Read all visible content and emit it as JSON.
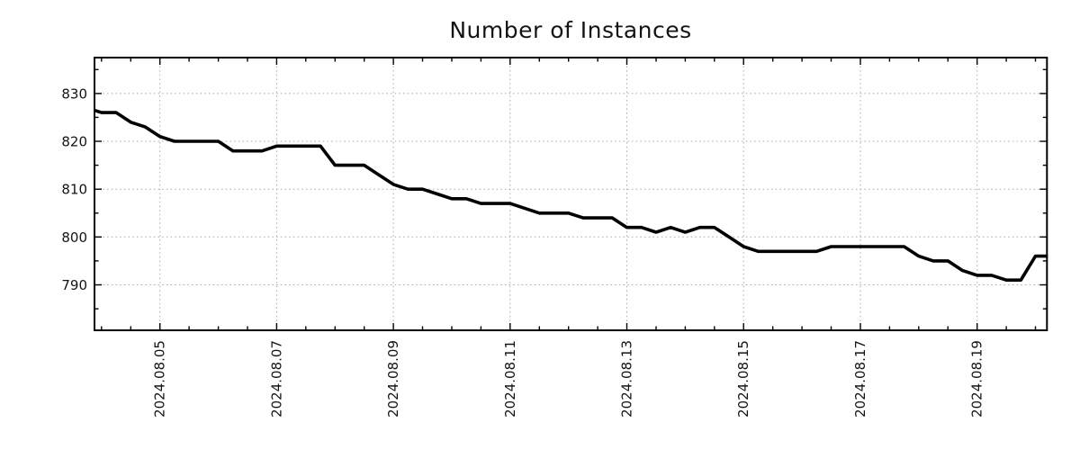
{
  "title": "Number of Instances",
  "chart_data": {
    "type": "line",
    "title": "Number of Instances",
    "xlabel": "",
    "ylabel": "",
    "x_unit": "day of August 2024 (decimal, 6-hour sampling)",
    "xlim": [
      3.879,
      20.197
    ],
    "ylim": [
      780.5,
      837.5
    ],
    "grid": "dotted on major ticks, both axes",
    "legend": "none",
    "line_color": "#000000",
    "line_width": 3.6,
    "grid_color": "#a8a8a8",
    "background_color": "#ffffff",
    "x_major_ticks": [
      {
        "pos": 5,
        "label": "2024.08.05"
      },
      {
        "pos": 7,
        "label": "2024.08.07"
      },
      {
        "pos": 9,
        "label": "2024.08.09"
      },
      {
        "pos": 11,
        "label": "2024.08.11"
      },
      {
        "pos": 13,
        "label": "2024.08.13"
      },
      {
        "pos": 15,
        "label": "2024.08.15"
      },
      {
        "pos": 17,
        "label": "2024.08.17"
      },
      {
        "pos": 19,
        "label": "2024.08.19"
      }
    ],
    "x_minor_ticks": [
      4,
      4.5,
      5.5,
      6,
      6.5,
      7.5,
      8,
      8.5,
      9.5,
      10,
      10.5,
      11.5,
      12,
      12.5,
      13.5,
      14,
      14.5,
      15.5,
      16,
      16.5,
      17.5,
      18,
      18.5,
      19.5,
      20
    ],
    "y_major_ticks": [
      {
        "pos": 790,
        "label": "790"
      },
      {
        "pos": 800,
        "label": "800"
      },
      {
        "pos": 810,
        "label": "810"
      },
      {
        "pos": 820,
        "label": "820"
      },
      {
        "pos": 830,
        "label": "830"
      }
    ],
    "y_minor_ticks": [
      785,
      795,
      805,
      815,
      825,
      835
    ],
    "points": [
      [
        3.75,
        827
      ],
      [
        4.0,
        826
      ],
      [
        4.25,
        826
      ],
      [
        4.5,
        824
      ],
      [
        4.75,
        823
      ],
      [
        5.0,
        821
      ],
      [
        5.25,
        820
      ],
      [
        5.5,
        820
      ],
      [
        5.75,
        820
      ],
      [
        6.0,
        820
      ],
      [
        6.25,
        818
      ],
      [
        6.5,
        818
      ],
      [
        6.75,
        818
      ],
      [
        7.0,
        819
      ],
      [
        7.25,
        819
      ],
      [
        7.5,
        819
      ],
      [
        7.75,
        819
      ],
      [
        8.0,
        815
      ],
      [
        8.25,
        815
      ],
      [
        8.5,
        815
      ],
      [
        8.75,
        813
      ],
      [
        9.0,
        811
      ],
      [
        9.25,
        810
      ],
      [
        9.5,
        810
      ],
      [
        9.75,
        809
      ],
      [
        10.0,
        808
      ],
      [
        10.25,
        808
      ],
      [
        10.5,
        807
      ],
      [
        10.75,
        807
      ],
      [
        11.0,
        807
      ],
      [
        11.25,
        806
      ],
      [
        11.5,
        805
      ],
      [
        11.75,
        805
      ],
      [
        12.0,
        805
      ],
      [
        12.25,
        804
      ],
      [
        12.5,
        804
      ],
      [
        12.75,
        804
      ],
      [
        13.0,
        802
      ],
      [
        13.25,
        802
      ],
      [
        13.5,
        801
      ],
      [
        13.75,
        802
      ],
      [
        14.0,
        801
      ],
      [
        14.25,
        802
      ],
      [
        14.5,
        802
      ],
      [
        14.75,
        800
      ],
      [
        15.0,
        798
      ],
      [
        15.25,
        797
      ],
      [
        15.5,
        797
      ],
      [
        15.75,
        797
      ],
      [
        16.0,
        797
      ],
      [
        16.25,
        797
      ],
      [
        16.5,
        798
      ],
      [
        16.75,
        798
      ],
      [
        17.0,
        798
      ],
      [
        17.25,
        798
      ],
      [
        17.5,
        798
      ],
      [
        17.75,
        798
      ],
      [
        18.0,
        796
      ],
      [
        18.25,
        795
      ],
      [
        18.5,
        795
      ],
      [
        18.75,
        793
      ],
      [
        19.0,
        792
      ],
      [
        19.25,
        792
      ],
      [
        19.5,
        791
      ],
      [
        19.75,
        791
      ],
      [
        20.0,
        796
      ],
      [
        20.25,
        796
      ]
    ]
  }
}
